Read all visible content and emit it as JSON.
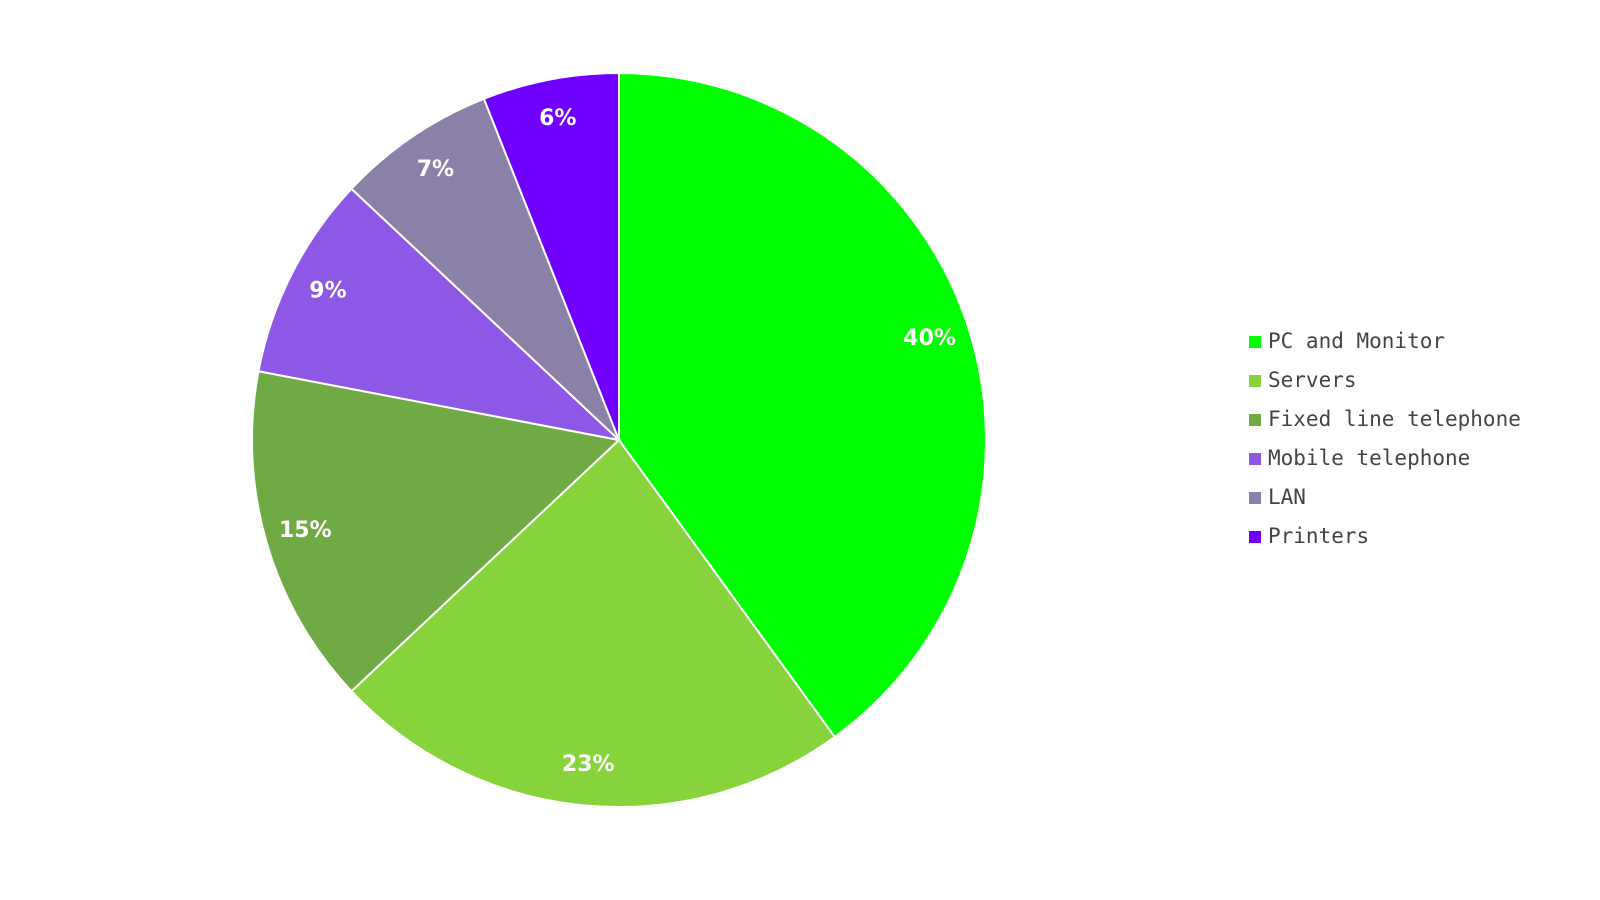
{
  "chart_data": {
    "type": "pie",
    "categories": [
      "PC and Monitor",
      "Servers",
      "Fixed line telephone",
      "Mobile telephone",
      "LAN",
      "Printers"
    ],
    "values": [
      40,
      23,
      15,
      9,
      7,
      6
    ],
    "value_labels": [
      "40%",
      "23%",
      "15%",
      "9%",
      "7%",
      "6%"
    ],
    "colors": [
      "#00ff00",
      "#87d33b",
      "#70aa45",
      "#8e58e6",
      "#8b80a8",
      "#6f00ff"
    ],
    "legend": "right"
  }
}
